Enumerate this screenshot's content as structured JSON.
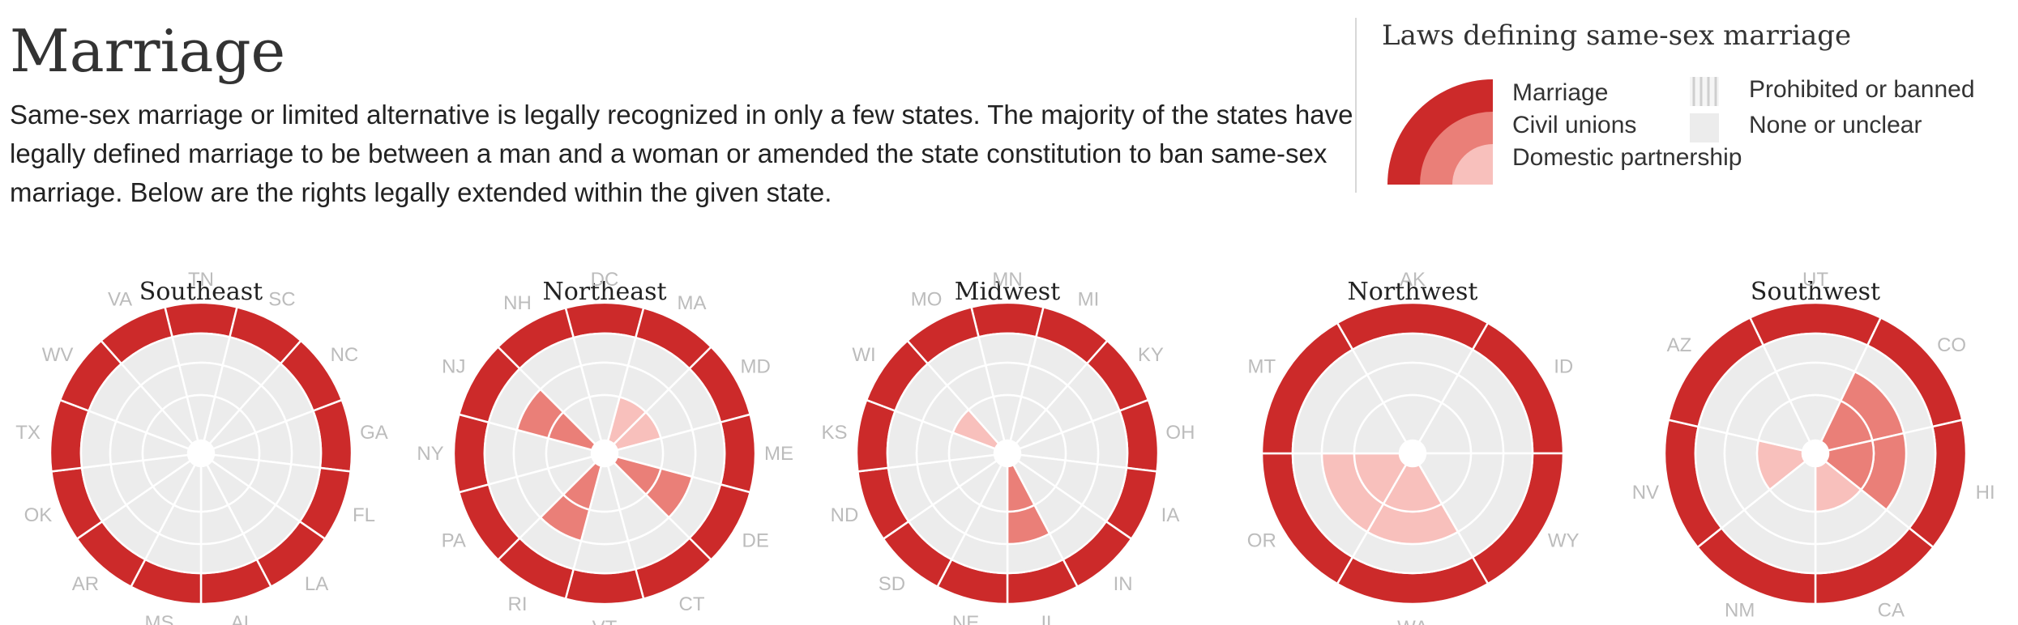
{
  "page": {
    "title": "Marriage",
    "description": "Same-sex marriage or limited alternative is legally recognized in only a few states. The majority of the states have legally defined marriage to be between a man and a woman or amended the state constitution to ban same-sex marriage. Below are the rights legally extended within the given state."
  },
  "legend": {
    "title": "Laws defining same-sex marriage",
    "items": {
      "marriage": "Marriage",
      "civil_unions": "Civil unions",
      "domestic_partnership": "Domestic partnership",
      "prohibited": "Prohibited or banned",
      "none": "None or unclear"
    }
  },
  "colors": {
    "marriage": "#cc2a2a",
    "civil_unions": "#ea7f78",
    "domestic_partnership": "#f8c0bc",
    "none": "#ececec",
    "label": "#bcbcbc",
    "grid": "#ffffff"
  },
  "chart_data": {
    "type": "radial",
    "ring_levels": [
      "domestic_partnership",
      "civil_unions",
      "marriage"
    ],
    "regions": [
      {
        "name": "Southeast",
        "states": [
          {
            "code": "TN",
            "marriage": "ban",
            "civil_unions": "none",
            "domestic_partnership": "none"
          },
          {
            "code": "SC",
            "marriage": "ban",
            "civil_unions": "none",
            "domestic_partnership": "none"
          },
          {
            "code": "NC",
            "marriage": "ban",
            "civil_unions": "none",
            "domestic_partnership": "none"
          },
          {
            "code": "GA",
            "marriage": "ban",
            "civil_unions": "none",
            "domestic_partnership": "none"
          },
          {
            "code": "FL",
            "marriage": "ban",
            "civil_unions": "none",
            "domestic_partnership": "none"
          },
          {
            "code": "LA",
            "marriage": "ban",
            "civil_unions": "none",
            "domestic_partnership": "none"
          },
          {
            "code": "AL",
            "marriage": "ban",
            "civil_unions": "none",
            "domestic_partnership": "none"
          },
          {
            "code": "MS",
            "marriage": "ban",
            "civil_unions": "none",
            "domestic_partnership": "none"
          },
          {
            "code": "AR",
            "marriage": "ban",
            "civil_unions": "none",
            "domestic_partnership": "none"
          },
          {
            "code": "OK",
            "marriage": "ban",
            "civil_unions": "none",
            "domestic_partnership": "none"
          },
          {
            "code": "TX",
            "marriage": "ban",
            "civil_unions": "none",
            "domestic_partnership": "none"
          },
          {
            "code": "WV",
            "marriage": "ban",
            "civil_unions": "none",
            "domestic_partnership": "none"
          },
          {
            "code": "VA",
            "marriage": "ban",
            "civil_unions": "none",
            "domestic_partnership": "none"
          }
        ]
      },
      {
        "name": "Northeast",
        "states": [
          {
            "code": "DC",
            "marriage": "ban",
            "civil_unions": "none",
            "domestic_partnership": "none"
          },
          {
            "code": "MA",
            "marriage": "ban",
            "civil_unions": "none",
            "domestic_partnership": "partial"
          },
          {
            "code": "MD",
            "marriage": "ban",
            "civil_unions": "none",
            "domestic_partnership": "partial"
          },
          {
            "code": "ME",
            "marriage": "ban",
            "civil_unions": "none",
            "domestic_partnership": "none"
          },
          {
            "code": "DE",
            "marriage": "ban",
            "civil_unions": "yes",
            "domestic_partnership": "none"
          },
          {
            "code": "CT",
            "marriage": "ban",
            "civil_unions": "none",
            "domestic_partnership": "none"
          },
          {
            "code": "VT",
            "marriage": "ban",
            "civil_unions": "none",
            "domestic_partnership": "none"
          },
          {
            "code": "RI",
            "marriage": "ban",
            "civil_unions": "yes",
            "domestic_partnership": "none"
          },
          {
            "code": "PA",
            "marriage": "ban",
            "civil_unions": "none",
            "domestic_partnership": "none"
          },
          {
            "code": "NY",
            "marriage": "ban",
            "civil_unions": "none",
            "domestic_partnership": "none"
          },
          {
            "code": "NJ",
            "marriage": "ban",
            "civil_unions": "yes",
            "domestic_partnership": "none"
          },
          {
            "code": "NH",
            "marriage": "ban",
            "civil_unions": "none",
            "domestic_partnership": "none"
          }
        ]
      },
      {
        "name": "Midwest",
        "states": [
          {
            "code": "MN",
            "marriage": "ban",
            "civil_unions": "none",
            "domestic_partnership": "none"
          },
          {
            "code": "MI",
            "marriage": "ban",
            "civil_unions": "none",
            "domestic_partnership": "none"
          },
          {
            "code": "KY",
            "marriage": "ban",
            "civil_unions": "none",
            "domestic_partnership": "none"
          },
          {
            "code": "OH",
            "marriage": "ban",
            "civil_unions": "none",
            "domestic_partnership": "none"
          },
          {
            "code": "IA",
            "marriage": "ban",
            "civil_unions": "none",
            "domestic_partnership": "none"
          },
          {
            "code": "IN",
            "marriage": "ban",
            "civil_unions": "none",
            "domestic_partnership": "none"
          },
          {
            "code": "IL",
            "marriage": "ban",
            "civil_unions": "yes",
            "domestic_partnership": "none"
          },
          {
            "code": "NE",
            "marriage": "ban",
            "civil_unions": "none",
            "domestic_partnership": "none"
          },
          {
            "code": "SD",
            "marriage": "ban",
            "civil_unions": "none",
            "domestic_partnership": "none"
          },
          {
            "code": "ND",
            "marriage": "ban",
            "civil_unions": "none",
            "domestic_partnership": "none"
          },
          {
            "code": "KS",
            "marriage": "ban",
            "civil_unions": "none",
            "domestic_partnership": "none"
          },
          {
            "code": "WI",
            "marriage": "ban",
            "civil_unions": "none",
            "domestic_partnership": "partial"
          },
          {
            "code": "MO",
            "marriage": "ban",
            "civil_unions": "none",
            "domestic_partnership": "none"
          }
        ]
      },
      {
        "name": "Northwest",
        "states": [
          {
            "code": "AK",
            "marriage": "ban",
            "civil_unions": "none",
            "domestic_partnership": "none"
          },
          {
            "code": "ID",
            "marriage": "ban",
            "civil_unions": "none",
            "domestic_partnership": "none"
          },
          {
            "code": "WY",
            "marriage": "ban",
            "civil_unions": "none",
            "domestic_partnership": "none"
          },
          {
            "code": "WA",
            "marriage": "ban",
            "civil_unions": "none",
            "domestic_partnership": "yes"
          },
          {
            "code": "OR",
            "marriage": "ban",
            "civil_unions": "none",
            "domestic_partnership": "yes"
          },
          {
            "code": "MT",
            "marriage": "ban",
            "civil_unions": "none",
            "domestic_partnership": "none"
          }
        ]
      },
      {
        "name": "Southwest",
        "states": [
          {
            "code": "UT",
            "marriage": "ban",
            "civil_unions": "none",
            "domestic_partnership": "none"
          },
          {
            "code": "CO",
            "marriage": "ban",
            "civil_unions": "yes",
            "domestic_partnership": "none"
          },
          {
            "code": "HI",
            "marriage": "ban",
            "civil_unions": "yes",
            "domestic_partnership": "none"
          },
          {
            "code": "CA",
            "marriage": "ban",
            "civil_unions": "none",
            "domestic_partnership": "partial"
          },
          {
            "code": "NM",
            "marriage": "ban",
            "civil_unions": "none",
            "domestic_partnership": "none"
          },
          {
            "code": "NV",
            "marriage": "ban",
            "civil_unions": "none",
            "domestic_partnership": "partial"
          },
          {
            "code": "AZ",
            "marriage": "ban",
            "civil_unions": "none",
            "domestic_partnership": "none"
          }
        ]
      }
    ]
  }
}
